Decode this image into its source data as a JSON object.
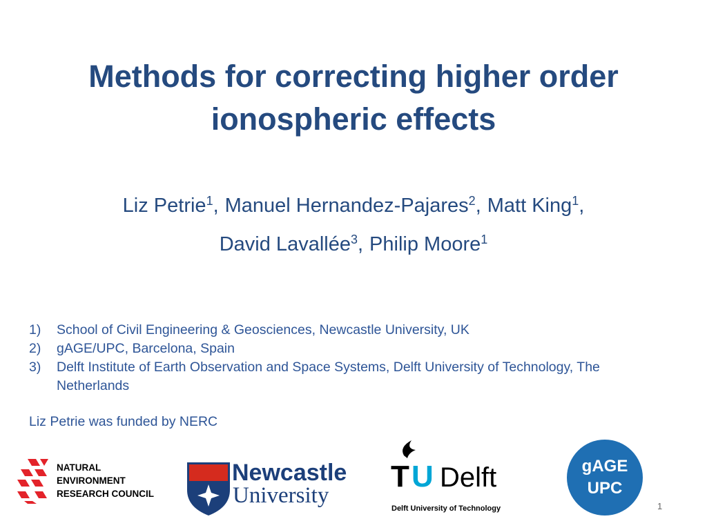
{
  "slide": {
    "title": "Methods for correcting higher order ionospheric effects",
    "authors": {
      "lines": [
        [
          {
            "name": "Liz Petrie",
            "sup": "1",
            "sep": ","
          },
          {
            "name": "Manuel Hernandez-Pajares",
            "sup": "2",
            "sep": ","
          },
          {
            "name": "Matt King",
            "sup": "1",
            "sep": ","
          }
        ],
        [
          {
            "name": "David Lavallée",
            "sup": "3",
            "sep": ","
          },
          {
            "name": "Philip Moore",
            "sup": "1"
          }
        ]
      ]
    },
    "affiliations": [
      {
        "marker": "1)",
        "text": "School of Civil Engineering & Geosciences, Newcastle University, UK"
      },
      {
        "marker": "2)",
        "text": "gAGE/UPC, Barcelona, Spain"
      },
      {
        "marker": "3)",
        "text": "Delft Institute of Earth Observation and Space Systems, Delft University of Technology, The Netherlands"
      }
    ],
    "funding": "Liz Petrie was funded by NERC",
    "logos": {
      "nerc": {
        "lines": [
          "NATURAL",
          "ENVIRONMENT",
          "RESEARCH COUNCIL"
        ]
      },
      "newcastle": {
        "lines": [
          "Newcastle",
          "University"
        ]
      },
      "tudelft": {
        "letters": [
          "T",
          "U"
        ],
        "word": "Delft",
        "caption": "Delft University of Technology"
      },
      "gage": {
        "lines": [
          "gAGE",
          "UPC"
        ]
      }
    },
    "page_number": "1"
  }
}
